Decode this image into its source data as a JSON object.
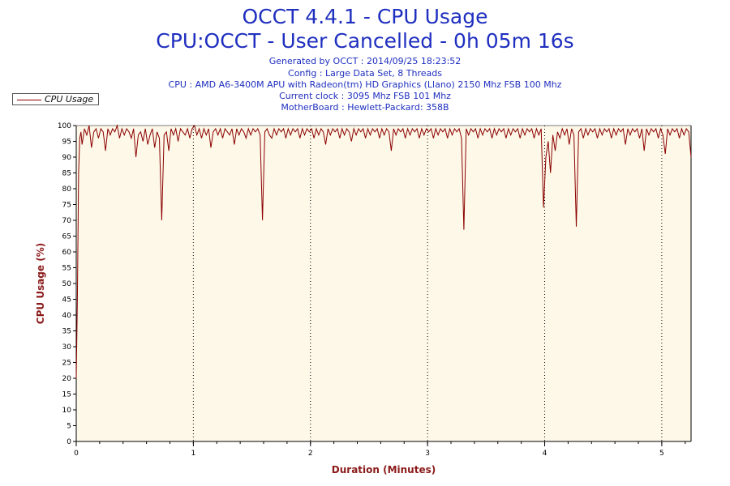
{
  "header": {
    "title": "OCCT 4.4.1 - CPU Usage",
    "subtitle": "CPU:OCCT - User Cancelled - 0h 05m 16s",
    "info": [
      "Generated by OCCT : 2014/09/25 18:23:52",
      "Config : Large Data Set, 8 Threads",
      "CPU : AMD A6-3400M APU with Radeon(tm) HD Graphics (Llano) 2150 Mhz FSB 100 Mhz",
      "Current clock : 3095 Mhz FSB 101 Mhz",
      "MotherBoard : Hewlett-Packard: 358B"
    ]
  },
  "colors": {
    "series": "#8b0000",
    "plot_background": "#fdf8e8",
    "title_text": "#1f2fbf",
    "axis_title": "#8b1a1a"
  },
  "chart_data": {
    "type": "line",
    "title": "OCCT 4.4.1 - CPU Usage",
    "xlabel": "Duration (Minutes)",
    "ylabel": "CPU Usage (%)",
    "xlim": [
      0,
      5.25
    ],
    "ylim": [
      0,
      100
    ],
    "x_ticks": [
      0,
      1,
      2,
      3,
      4,
      5
    ],
    "y_ticks": [
      0,
      5,
      10,
      15,
      20,
      25,
      30,
      35,
      40,
      45,
      50,
      55,
      60,
      65,
      70,
      75,
      80,
      85,
      90,
      95,
      100
    ],
    "grid": "vertical dotted lines at each minute",
    "legend": {
      "position": "top-left",
      "entries": [
        "CPU Usage"
      ]
    },
    "series": [
      {
        "name": "CPU Usage",
        "x": [
          0,
          0.01,
          0.02,
          0.03,
          0.04,
          0.05,
          0.07,
          0.09,
          0.11,
          0.13,
          0.15,
          0.17,
          0.19,
          0.21,
          0.23,
          0.25,
          0.27,
          0.29,
          0.31,
          0.33,
          0.35,
          0.37,
          0.39,
          0.41,
          0.43,
          0.45,
          0.47,
          0.49,
          0.51,
          0.53,
          0.55,
          0.57,
          0.59,
          0.61,
          0.63,
          0.65,
          0.67,
          0.69,
          0.71,
          0.73,
          0.75,
          0.77,
          0.79,
          0.81,
          0.83,
          0.85,
          0.87,
          0.89,
          0.91,
          0.93,
          0.95,
          0.97,
          0.99,
          1.01,
          1.03,
          1.05,
          1.07,
          1.09,
          1.11,
          1.13,
          1.15,
          1.17,
          1.19,
          1.21,
          1.23,
          1.25,
          1.27,
          1.29,
          1.31,
          1.33,
          1.35,
          1.37,
          1.39,
          1.41,
          1.43,
          1.45,
          1.47,
          1.49,
          1.51,
          1.53,
          1.55,
          1.57,
          1.59,
          1.61,
          1.63,
          1.65,
          1.67,
          1.69,
          1.71,
          1.73,
          1.75,
          1.77,
          1.79,
          1.81,
          1.83,
          1.85,
          1.87,
          1.89,
          1.91,
          1.93,
          1.95,
          1.97,
          1.99,
          2.01,
          2.03,
          2.05,
          2.07,
          2.09,
          2.11,
          2.13,
          2.15,
          2.17,
          2.19,
          2.21,
          2.23,
          2.25,
          2.27,
          2.29,
          2.31,
          2.33,
          2.35,
          2.37,
          2.39,
          2.41,
          2.43,
          2.45,
          2.47,
          2.49,
          2.51,
          2.53,
          2.55,
          2.57,
          2.59,
          2.61,
          2.63,
          2.65,
          2.67,
          2.69,
          2.71,
          2.73,
          2.75,
          2.77,
          2.79,
          2.81,
          2.83,
          2.85,
          2.87,
          2.89,
          2.91,
          2.93,
          2.95,
          2.97,
          2.99,
          3.01,
          3.03,
          3.05,
          3.07,
          3.09,
          3.11,
          3.13,
          3.15,
          3.17,
          3.19,
          3.21,
          3.23,
          3.25,
          3.27,
          3.29,
          3.31,
          3.33,
          3.35,
          3.37,
          3.39,
          3.41,
          3.43,
          3.45,
          3.47,
          3.49,
          3.51,
          3.53,
          3.55,
          3.57,
          3.59,
          3.61,
          3.63,
          3.65,
          3.67,
          3.69,
          3.71,
          3.73,
          3.75,
          3.77,
          3.79,
          3.81,
          3.83,
          3.85,
          3.87,
          3.89,
          3.91,
          3.93,
          3.95,
          3.97,
          3.99,
          4.01,
          4.03,
          4.05,
          4.07,
          4.09,
          4.11,
          4.13,
          4.15,
          4.17,
          4.19,
          4.21,
          4.23,
          4.25,
          4.27,
          4.29,
          4.31,
          4.33,
          4.35,
          4.37,
          4.39,
          4.41,
          4.43,
          4.45,
          4.47,
          4.49,
          4.51,
          4.53,
          4.55,
          4.57,
          4.59,
          4.61,
          4.63,
          4.65,
          4.67,
          4.69,
          4.71,
          4.73,
          4.75,
          4.77,
          4.79,
          4.81,
          4.83,
          4.85,
          4.87,
          4.89,
          4.91,
          4.93,
          4.95,
          4.97,
          4.99,
          5.01,
          5.03,
          5.05,
          5.07,
          5.09,
          5.11,
          5.13,
          5.15,
          5.17,
          5.19,
          5.21,
          5.23,
          5.25
        ],
        "y": [
          20,
          45,
          85,
          96,
          98,
          94,
          99,
          97,
          100,
          93,
          98,
          99,
          96,
          99,
          98,
          92,
          99,
          97,
          99,
          98,
          100,
          96,
          99,
          97,
          99,
          98,
          96,
          99,
          90,
          97,
          98,
          95,
          99,
          94,
          97,
          99,
          93,
          98,
          96,
          70,
          97,
          98,
          92,
          99,
          97,
          99,
          95,
          99,
          98,
          97,
          99,
          96,
          99,
          100,
          97,
          99,
          96,
          99,
          97,
          99,
          93,
          98,
          99,
          97,
          99,
          96,
          99,
          98,
          97,
          99,
          94,
          99,
          97,
          99,
          98,
          96,
          99,
          97,
          99,
          98,
          99,
          97,
          70,
          98,
          99,
          97,
          96,
          99,
          97,
          99,
          98,
          99,
          96,
          99,
          97,
          99,
          98,
          99,
          96,
          99,
          97,
          99,
          98,
          99,
          96,
          99,
          97,
          99,
          98,
          94,
          99,
          97,
          99,
          98,
          99,
          96,
          99,
          97,
          99,
          98,
          95,
          99,
          97,
          99,
          98,
          99,
          96,
          99,
          97,
          99,
          98,
          99,
          96,
          99,
          97,
          99,
          98,
          92,
          99,
          97,
          99,
          98,
          99,
          96,
          99,
          97,
          99,
          98,
          99,
          96,
          99,
          97,
          99,
          98,
          99,
          96,
          99,
          97,
          99,
          98,
          99,
          96,
          99,
          97,
          99,
          98,
          99,
          96,
          67,
          99,
          97,
          99,
          98,
          99,
          96,
          99,
          97,
          99,
          98,
          99,
          96,
          99,
          97,
          99,
          98,
          99,
          96,
          99,
          97,
          99,
          98,
          99,
          96,
          99,
          97,
          99,
          98,
          99,
          96,
          99,
          97,
          99,
          74,
          90,
          95,
          85,
          97,
          92,
          98,
          96,
          99,
          97,
          99,
          94,
          99,
          97,
          68,
          98,
          99,
          96,
          99,
          97,
          99,
          98,
          99,
          96,
          99,
          97,
          99,
          98,
          99,
          96,
          99,
          97,
          99,
          98,
          99,
          94,
          99,
          97,
          99,
          98,
          99,
          96,
          99,
          92,
          99,
          97,
          99,
          98,
          99,
          96,
          99,
          97,
          91,
          99,
          97,
          99,
          98,
          99,
          96,
          99,
          97,
          99,
          98,
          90
        ]
      }
    ]
  }
}
